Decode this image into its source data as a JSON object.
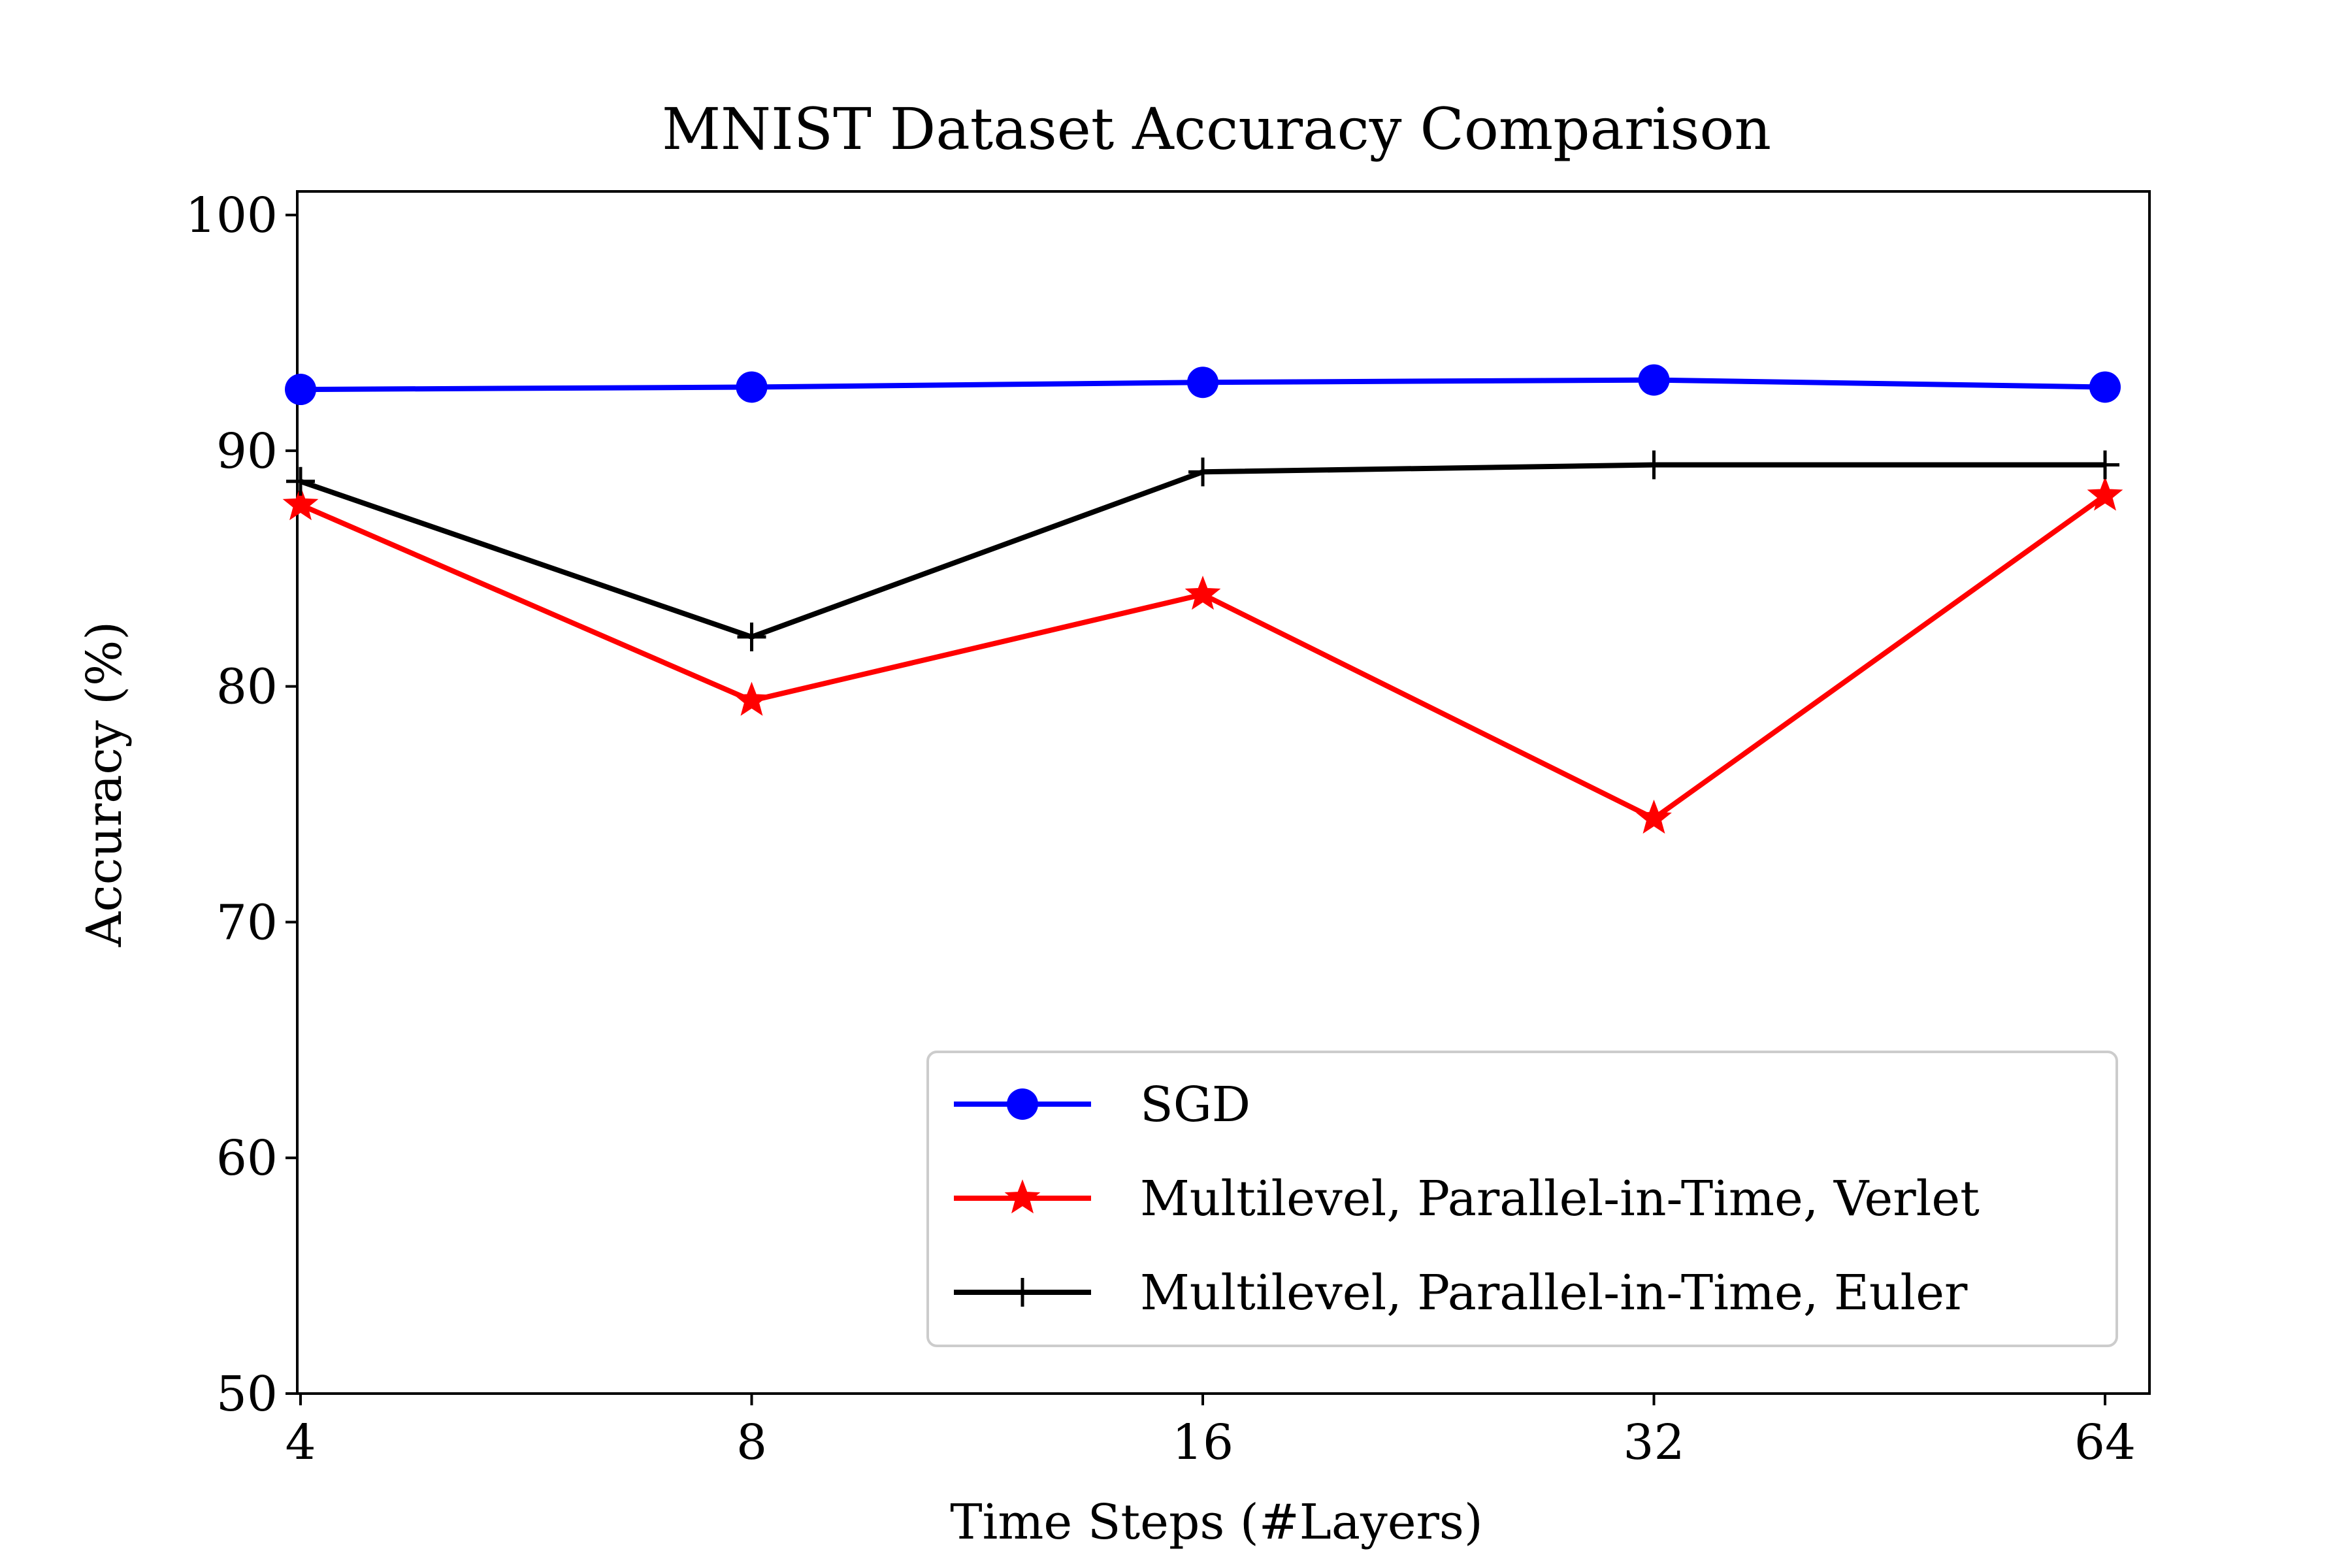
{
  "chart_data": {
    "type": "line",
    "title": "MNIST Dataset Accuracy Comparison",
    "xlabel": "Time Steps (#Layers)",
    "ylabel": "Accuracy (%)",
    "x_scale": "log2",
    "x": [
      4,
      8,
      16,
      32,
      64
    ],
    "x_tick_labels": [
      "4",
      "8",
      "16",
      "32",
      "64"
    ],
    "ylim": [
      50,
      101
    ],
    "y_ticks": [
      50,
      60,
      70,
      80,
      90,
      100
    ],
    "y_tick_labels": [
      "50",
      "60",
      "70",
      "80",
      "90",
      "100"
    ],
    "grid": false,
    "legend_position": "lower-right",
    "series": [
      {
        "name": "SGD",
        "color": "#0000ff",
        "marker": "circle",
        "values": [
          92.6,
          92.7,
          92.9,
          93.0,
          92.7
        ]
      },
      {
        "name": "Multilevel, Parallel-in-Time, Verlet",
        "color": "#ff0000",
        "marker": "star",
        "values": [
          87.7,
          79.4,
          83.9,
          74.4,
          88.1
        ]
      },
      {
        "name": "Multilevel, Parallel-in-Time, Euler",
        "color": "#000000",
        "marker": "plus",
        "values": [
          88.7,
          82.1,
          89.1,
          89.4,
          89.4
        ]
      }
    ]
  }
}
